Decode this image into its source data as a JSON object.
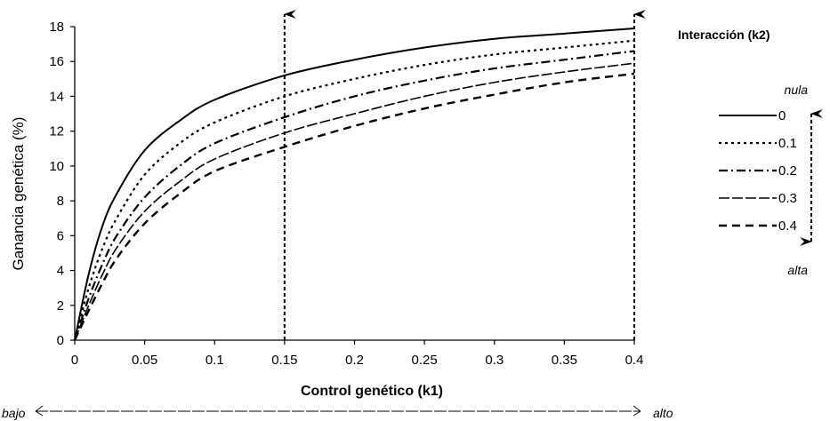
{
  "chart_data": {
    "type": "line",
    "xlabel": "Control genético (k1)",
    "ylabel": "Ganancia genética (%)",
    "xlim": [
      0,
      0.4
    ],
    "ylim": [
      0,
      18
    ],
    "x_ticks": [
      "0",
      "0.05",
      "0.1",
      "0.15",
      "0.2",
      "0.25",
      "0.3",
      "0.35",
      "0.4"
    ],
    "y_ticks": [
      "0",
      "2",
      "4",
      "6",
      "8",
      "10",
      "12",
      "14",
      "16",
      "18"
    ],
    "grid": false,
    "legend": {
      "title": "Interacción (k2)",
      "top_label": "nula",
      "bottom_label": "alta",
      "placement": "right"
    },
    "axis_range_labels": {
      "low": "bajo",
      "high": "alto"
    },
    "x": [
      0,
      0.01,
      0.02,
      0.03,
      0.05,
      0.075,
      0.1,
      0.15,
      0.2,
      0.25,
      0.3,
      0.35,
      0.4
    ],
    "series": [
      {
        "name": "0",
        "style": "solid",
        "values": [
          0,
          3.8,
          6.6,
          8.4,
          10.9,
          12.6,
          13.8,
          15.2,
          16.1,
          16.8,
          17.3,
          17.6,
          17.9
        ]
      },
      {
        "name": "0.1",
        "style": "dotted",
        "values": [
          0,
          3.0,
          5.3,
          7.0,
          9.5,
          11.3,
          12.5,
          14.0,
          15.0,
          15.8,
          16.4,
          16.8,
          17.2
        ]
      },
      {
        "name": "0.2",
        "style": "dashdot",
        "values": [
          0,
          2.4,
          4.4,
          6.0,
          8.2,
          10.0,
          11.3,
          12.8,
          14.0,
          14.9,
          15.6,
          16.1,
          16.6
        ]
      },
      {
        "name": "0.3",
        "style": "longdash",
        "values": [
          0,
          2.0,
          3.8,
          5.3,
          7.4,
          9.1,
          10.4,
          11.9,
          13.0,
          14.0,
          14.8,
          15.4,
          15.9
        ]
      },
      {
        "name": "0.4",
        "style": "dashed",
        "values": [
          0,
          1.7,
          3.3,
          4.7,
          6.7,
          8.4,
          9.7,
          11.1,
          12.3,
          13.3,
          14.1,
          14.8,
          15.3
        ]
      }
    ],
    "annotations": [
      {
        "type": "vertical-arrow",
        "x": 0.15
      },
      {
        "type": "vertical-arrow",
        "x": 0.4
      }
    ]
  }
}
